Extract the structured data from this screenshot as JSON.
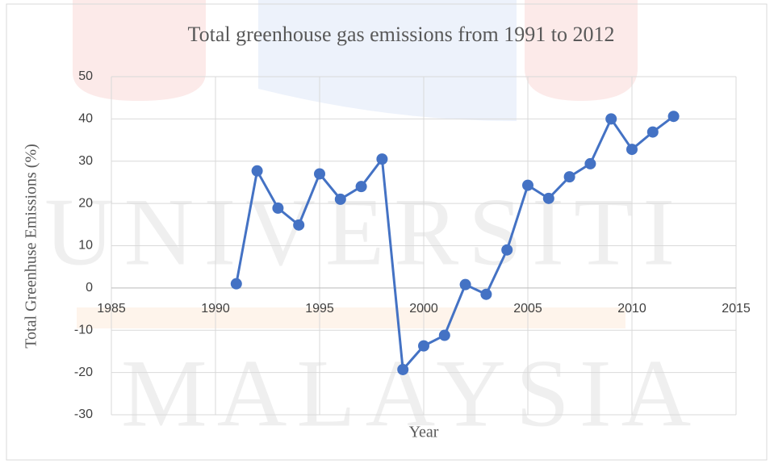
{
  "chart_data": {
    "type": "line",
    "title": "Total greenhouse gas emissions from 1991 to 2012",
    "x_label": "Year",
    "y_label": "Total Greenhuse Emissions (%)",
    "watermark": [
      "UNIVERSITI",
      "MALAYSIA"
    ],
    "x": [
      1991,
      1992,
      1993,
      1994,
      1995,
      1996,
      1997,
      1998,
      1999,
      2000,
      2001,
      2002,
      2003,
      2004,
      2005,
      2006,
      2007,
      2008,
      2009,
      2010,
      2011,
      2012
    ],
    "values": [
      1,
      27.7,
      18.9,
      14.9,
      27,
      21,
      24,
      30.5,
      -19.3,
      -13.7,
      -11.2,
      0.8,
      -1.5,
      9,
      24.3,
      21.2,
      26.3,
      29.4,
      40,
      32.8,
      36.9,
      40.6
    ],
    "color": "#4472c4",
    "xlim": [
      1985,
      2015
    ],
    "xticks": [
      1985,
      1990,
      1995,
      2000,
      2005,
      2010,
      2015
    ],
    "ylim": [
      -30,
      50
    ],
    "yticks": [
      -30,
      -20,
      -10,
      0,
      10,
      20,
      30,
      40,
      50
    ],
    "grid": true
  }
}
